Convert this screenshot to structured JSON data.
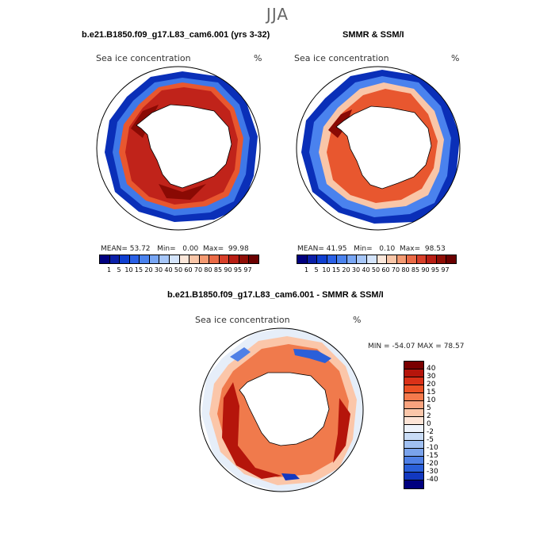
{
  "page": {
    "title": "JJA"
  },
  "panels": {
    "model": {
      "title": "b.e21.B1850.f09_g17.L83_cam6.001 (yrs 3-32)",
      "variable": "Sea ice concentration",
      "units": "%",
      "stats": {
        "mean_label": "MEAN=",
        "mean": "53.72",
        "min_label": "Min=",
        "min": "0.00",
        "max_label": "Max=",
        "max": "99.98"
      }
    },
    "obs": {
      "title": "SMMR & SSM/I",
      "variable": "Sea ice concentration",
      "units": "%",
      "stats": {
        "mean_label": "MEAN=",
        "mean": "41.95",
        "min_label": "Min=",
        "min": "0.10",
        "max_label": "Max=",
        "max": "98.53"
      }
    },
    "diff": {
      "title": "b.e21.B1850.f09_g17.L83_cam6.001 - SMMR & SSM/I",
      "variable": "Sea ice concentration",
      "units": "%",
      "stats": {
        "min_label": "MIN =",
        "min": "-54.07",
        "max_label": "MAX =",
        "max": "78.57"
      }
    }
  },
  "concentration_scale": {
    "labels": [
      "1",
      "5",
      "10",
      "15",
      "20",
      "30",
      "40",
      "50",
      "60",
      "70",
      "80",
      "85",
      "90",
      "95",
      "97"
    ],
    "colors": [
      "#00007f",
      "#0a1fa8",
      "#0f3fd0",
      "#2a60e6",
      "#4a82ee",
      "#78a6f4",
      "#a6c6f8",
      "#d4e4fb",
      "#fbe7da",
      "#f9c6a8",
      "#f49a72",
      "#ea6a46",
      "#d8402a",
      "#b81e14",
      "#8f0e06",
      "#6b0000"
    ]
  },
  "difference_scale": {
    "labels": [
      "40",
      "30",
      "20",
      "15",
      "10",
      "5",
      "2",
      "0",
      "-2",
      "-5",
      "-10",
      "-15",
      "-20",
      "-30",
      "-40"
    ],
    "colors": [
      "#7a0000",
      "#b5150b",
      "#da3118",
      "#ec5024",
      "#f57a4c",
      "#f9a37e",
      "#fbc6a9",
      "#fde4d6",
      "#eef3fb",
      "#c9dcf6",
      "#a0c0f2",
      "#7aa3ec",
      "#4f80e6",
      "#2a5fd9",
      "#1238c0",
      "#00007f"
    ]
  }
}
